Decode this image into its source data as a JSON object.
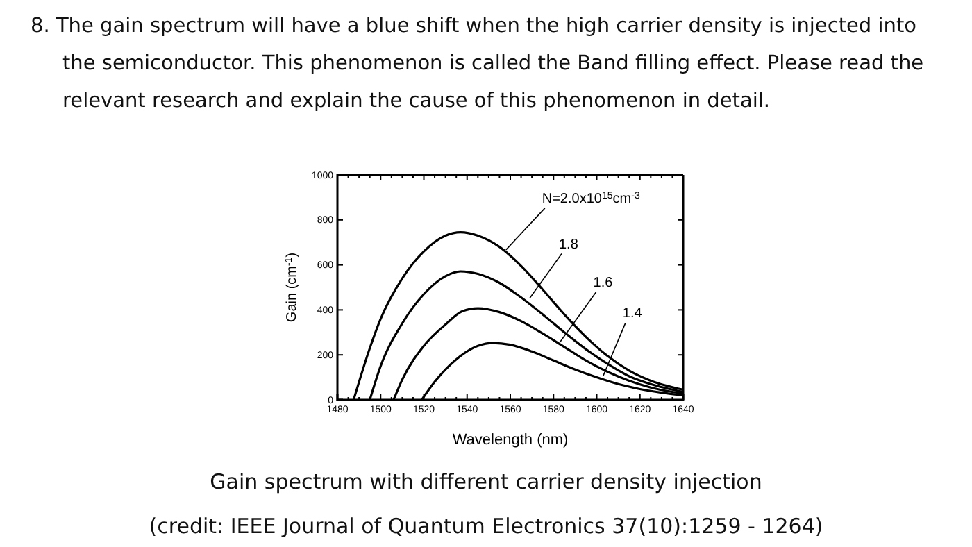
{
  "chart_data": {
    "type": "line",
    "title": "8. The gain spectrum will have a blue shift when the high carrier density is injected into the semiconductor. This phenomenon is called the Band filling effect. Please read the relevant research and explain the cause of this phenomenon in detail.",
    "xlabel": "Wavelength (nm)",
    "ylabel": "Gain (cm$^{-1}$)",
    "xlim": [
      1480,
      1640
    ],
    "xticks": [
      1480,
      1500,
      1520,
      1540,
      1560,
      1580,
      1600,
      1620,
      1640
    ],
    "ylim": [
      0,
      1000
    ],
    "yticks": [
      0,
      200,
      400,
      600,
      800,
      1000
    ],
    "grid": false,
    "marker": "none",
    "line_style": "solid",
    "series": [
      {
        "color": "#000000",
        "x": [
          1487.5,
          1495,
          1500,
          1510,
          1520,
          1530,
          1537,
          1545,
          1555,
          1565,
          1575,
          1585,
          1595,
          1605,
          1615,
          1625,
          1640
        ],
        "values": [
          0,
          230,
          360,
          540,
          660,
          730,
          745,
          730,
          680,
          595,
          490,
          380,
          280,
          195,
          130,
          85,
          45
        ]
      },
      {
        "color": "#000000",
        "x": [
          1495,
          1500,
          1510,
          1520,
          1530,
          1537,
          1545,
          1555,
          1565,
          1575,
          1585,
          1595,
          1605,
          1615,
          1625,
          1640
        ],
        "values": [
          0,
          150,
          340,
          470,
          550,
          571,
          560,
          520,
          455,
          380,
          300,
          225,
          160,
          105,
          70,
          35
        ]
      },
      {
        "color": "#000000",
        "x": [
          1506,
          1510,
          1520,
          1530,
          1538,
          1545,
          1555,
          1565,
          1575,
          1585,
          1595,
          1605,
          1615,
          1625,
          1640
        ],
        "values": [
          0,
          90,
          240,
          335,
          395,
          407,
          390,
          350,
          295,
          235,
          175,
          125,
          85,
          55,
          28
        ]
      },
      {
        "color": "#000000",
        "x": [
          1519,
          1525,
          1535,
          1545,
          1552,
          1560,
          1570,
          1580,
          1590,
          1600,
          1610,
          1620,
          1630,
          1640
        ],
        "values": [
          0,
          80,
          180,
          240,
          253,
          245,
          215,
          175,
          135,
          100,
          70,
          48,
          32,
          20
        ]
      }
    ],
    "annotations": [
      {
        "text": "N=2.0x10$^{15}$cm$^{-3}$",
        "x": 1558,
        "y": 667
      },
      {
        "text": "1.8",
        "x": 1569,
        "y": 452
      },
      {
        "text": "1.6",
        "x": 1583,
        "y": 257
      },
      {
        "text": "1.4",
        "x": 1603,
        "y": 107
      },
      "Gain spectrum with different carrier density injection",
      "(credit: IEEE Journal of Quantum Electronics 37(10):1259 - 1264)"
    ]
  }
}
